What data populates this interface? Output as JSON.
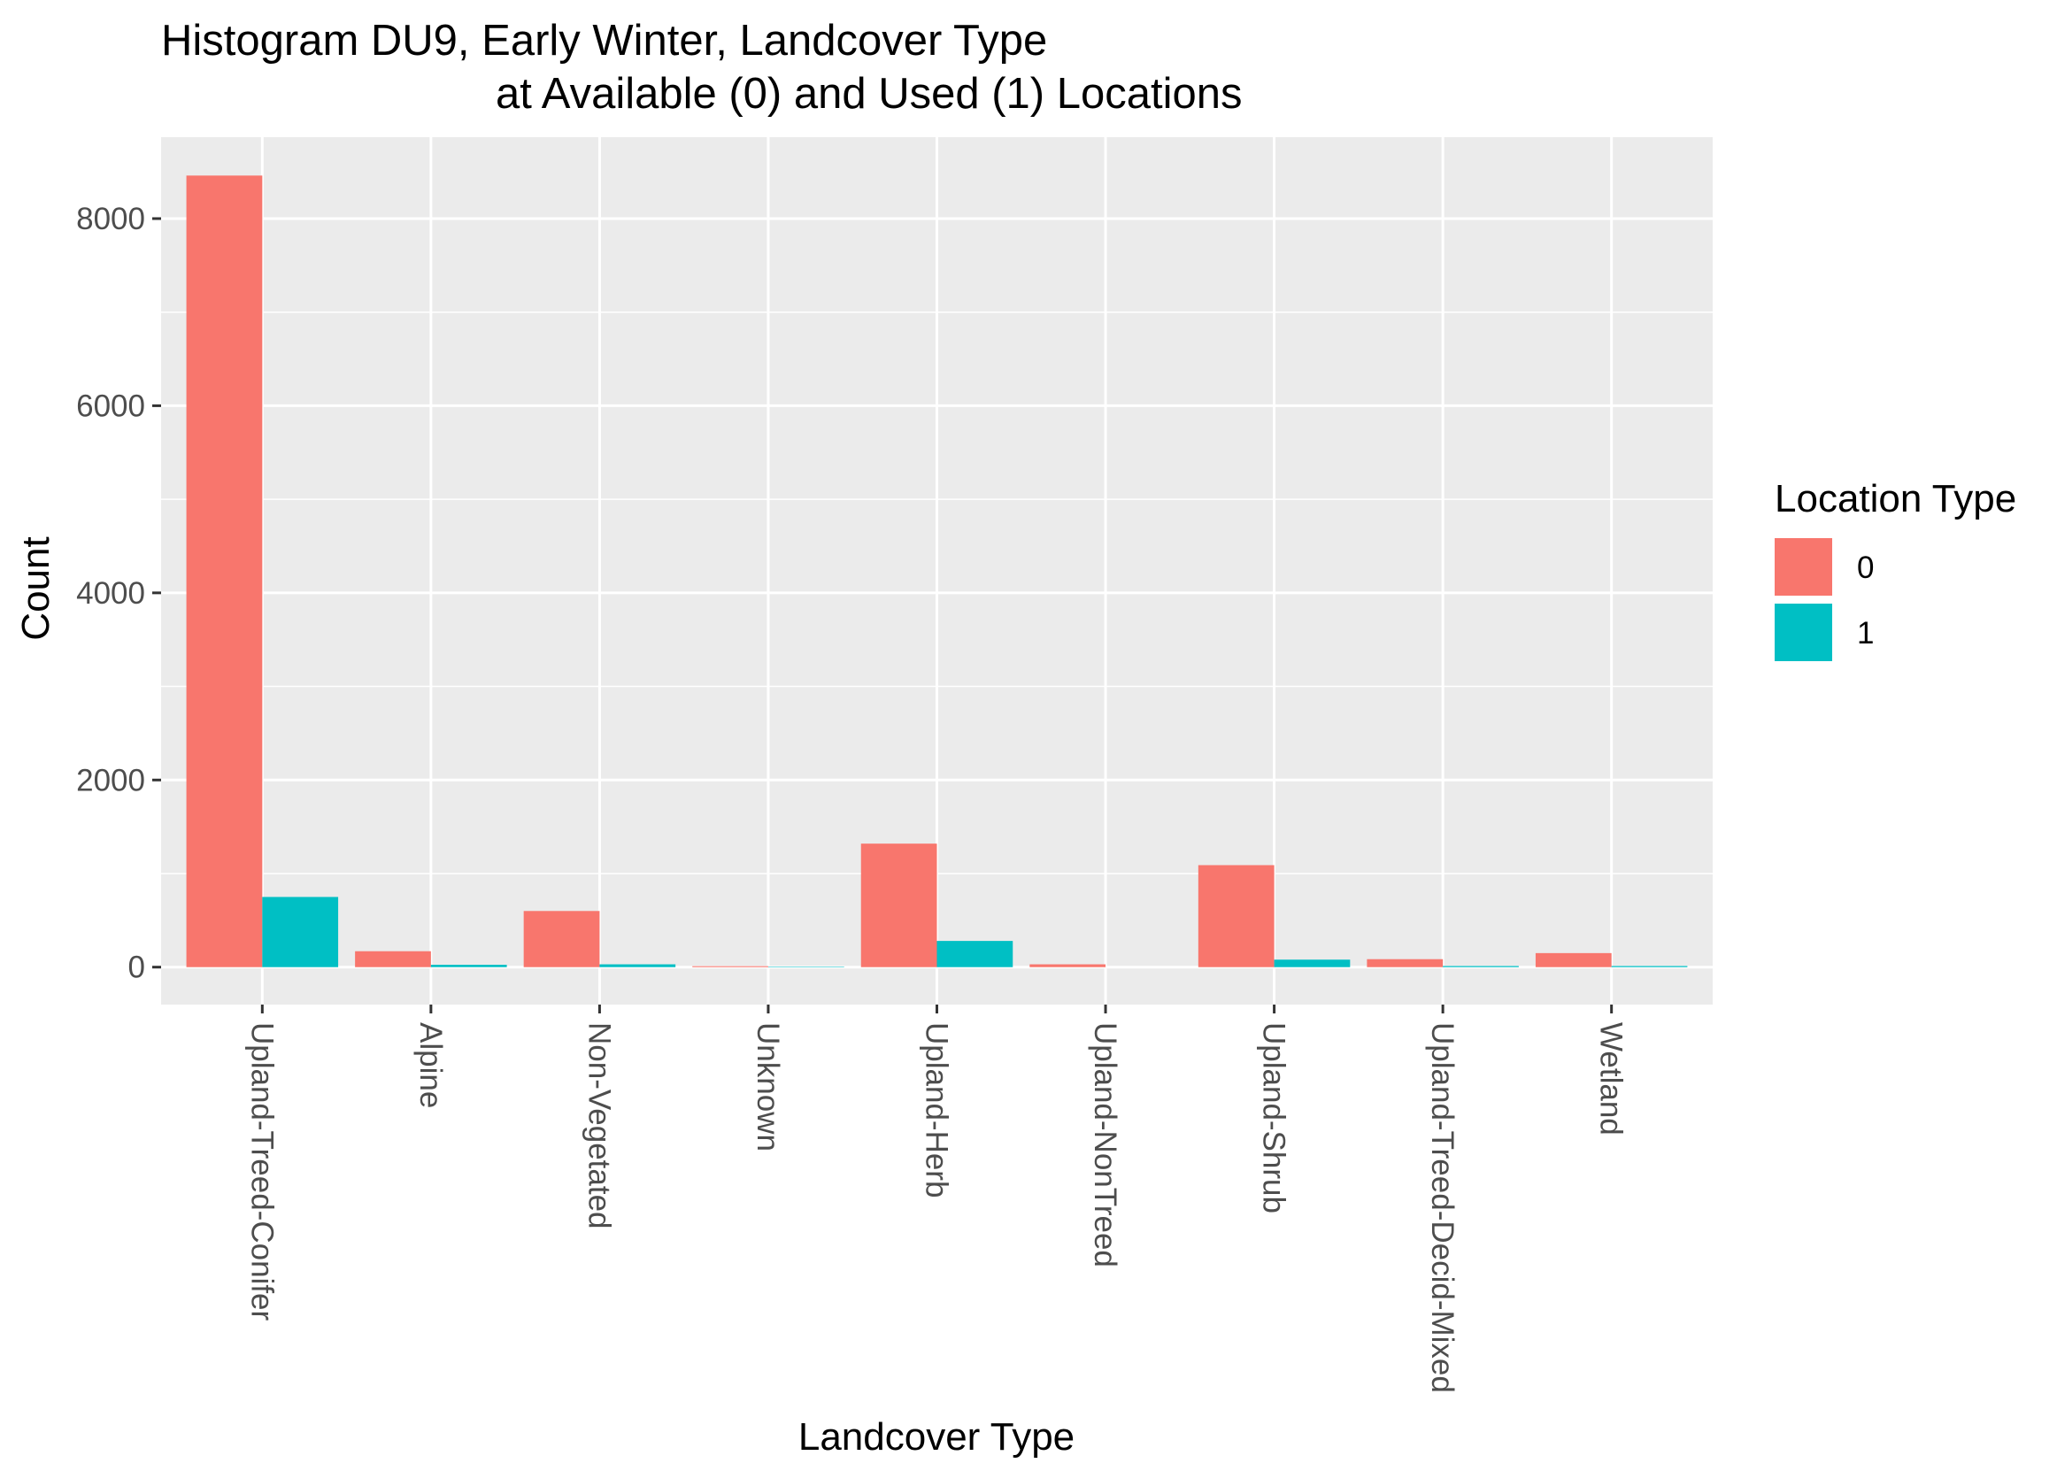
{
  "chart_data": {
    "type": "bar",
    "title_line1": "Histogram DU9, Early Winter, Landcover Type",
    "title_line2": "at Available (0) and Used (1) Locations",
    "xlabel": "Landcover Type",
    "ylabel": "Count",
    "categories": [
      "Upland-Treed-Conifer",
      "Alpine",
      "Non-Vegetated",
      "Unknown",
      "Upland-Herb",
      "Upland-NonTreed",
      "Upland-Shrub",
      "Upland-Treed-Decid-Mixed",
      "Wetland"
    ],
    "series": [
      {
        "name": "0",
        "color": "#F8766D",
        "values": [
          8460,
          170,
          600,
          10,
          1320,
          30,
          1090,
          85,
          150
        ]
      },
      {
        "name": "1",
        "color": "#00BFC4",
        "values": [
          750,
          25,
          30,
          5,
          280,
          0,
          80,
          12,
          12
        ]
      }
    ],
    "ylim": [
      -400,
      8870
    ],
    "y_ticks": [
      0,
      2000,
      4000,
      6000,
      8000
    ],
    "y_tick_labels": [
      "0",
      "2000",
      "4000",
      "6000",
      "8000"
    ],
    "grid": true,
    "legend": {
      "title": "Location Type",
      "position": "right",
      "labels": [
        "0",
        "1"
      ]
    },
    "x_tick_rotation": "90-clockwise"
  }
}
